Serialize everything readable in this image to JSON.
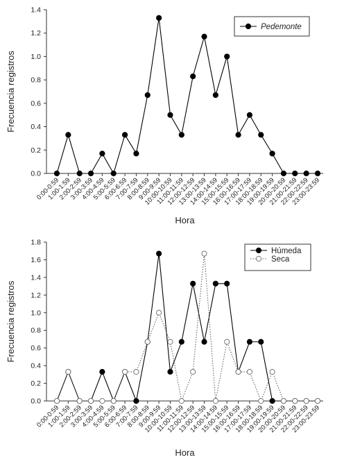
{
  "chart_data": [
    {
      "type": "line",
      "xlabel": "Hora",
      "ylabel": "Frecuencia registros",
      "ylim": [
        0,
        1.4
      ],
      "yticks": [
        "0.0",
        "0.2",
        "0.4",
        "0.6",
        "0.8",
        "1.0",
        "1.2",
        "1.4"
      ],
      "categories": [
        "0:00-0:59",
        "1:00-1:59",
        "2:00-2:59",
        "3:00-3:59",
        "4:00-4:59",
        "5:00-5:59",
        "6:00-6:59",
        "7:00-7:59",
        "8:00-8:59",
        "9:00-9:59",
        "10:00-10:59",
        "11:00-11:59",
        "12:00-12:59",
        "13:00-13:59",
        "14:00-14:59",
        "15:00-15:59",
        "16:00-16:59",
        "17:00-17:59",
        "18:00-18:59",
        "19:00-19:59",
        "20:00-20:59",
        "21:00-21:59",
        "22:00-22:59",
        "23:00-23:59"
      ],
      "legend_position": "top-right",
      "series": [
        {
          "name": "Pedemonte",
          "marker": "filled-circle",
          "line": "solid",
          "color": "#000000",
          "values": [
            0,
            0.33,
            0,
            0,
            0.17,
            0,
            0.33,
            0.17,
            0.67,
            1.33,
            0.5,
            0.33,
            0.83,
            1.17,
            0.67,
            1.0,
            0.33,
            0.5,
            0.33,
            0.17,
            0,
            0,
            0,
            0
          ]
        }
      ]
    },
    {
      "type": "line",
      "xlabel": "Hora",
      "ylabel": "Frecuencia registros",
      "ylim": [
        0,
        1.8
      ],
      "yticks": [
        "0.0",
        "0.2",
        "0.4",
        "0.6",
        "0.8",
        "1.0",
        "1.2",
        "1.4",
        "1.6",
        "1.8"
      ],
      "categories": [
        "0:00-0:59",
        "1:00-1:59",
        "2:00-2:59",
        "3:00-3:59",
        "4:00-4:59",
        "5:00-5:59",
        "6:00-6:59",
        "7:00-7:59",
        "8:00-8:59",
        "9:00-9:59",
        "10:00-10:59",
        "11:00-11:59",
        "12:00-12:59",
        "13:00-13:59",
        "14:00-14:59",
        "15:00-15:59",
        "16:00-16:59",
        "17:00-17:59",
        "18:00-18:59",
        "19:00-19:59",
        "20:00-20:59",
        "21:00-21:59",
        "22:00-22:59",
        "23:00-23:59"
      ],
      "legend_position": "top-right",
      "series": [
        {
          "name": "Húmeda",
          "marker": "filled-circle",
          "line": "solid",
          "color": "#000000",
          "values": [
            0,
            0.33,
            0,
            0,
            0.33,
            0,
            0.33,
            0,
            0.67,
            1.67,
            0.33,
            0.67,
            1.33,
            0.67,
            1.33,
            1.33,
            0.33,
            0.67,
            0.67,
            0,
            0,
            0,
            0,
            0
          ]
        },
        {
          "name": "Seca",
          "marker": "open-circle",
          "line": "dotted",
          "color": "#555555",
          "values": [
            0,
            0.33,
            0,
            0,
            0,
            0,
            0.33,
            0.33,
            0.67,
            1.0,
            0.67,
            0,
            0.33,
            1.67,
            0,
            0.67,
            0.33,
            0.33,
            0,
            0.33,
            0,
            0,
            0,
            0
          ]
        }
      ]
    }
  ]
}
